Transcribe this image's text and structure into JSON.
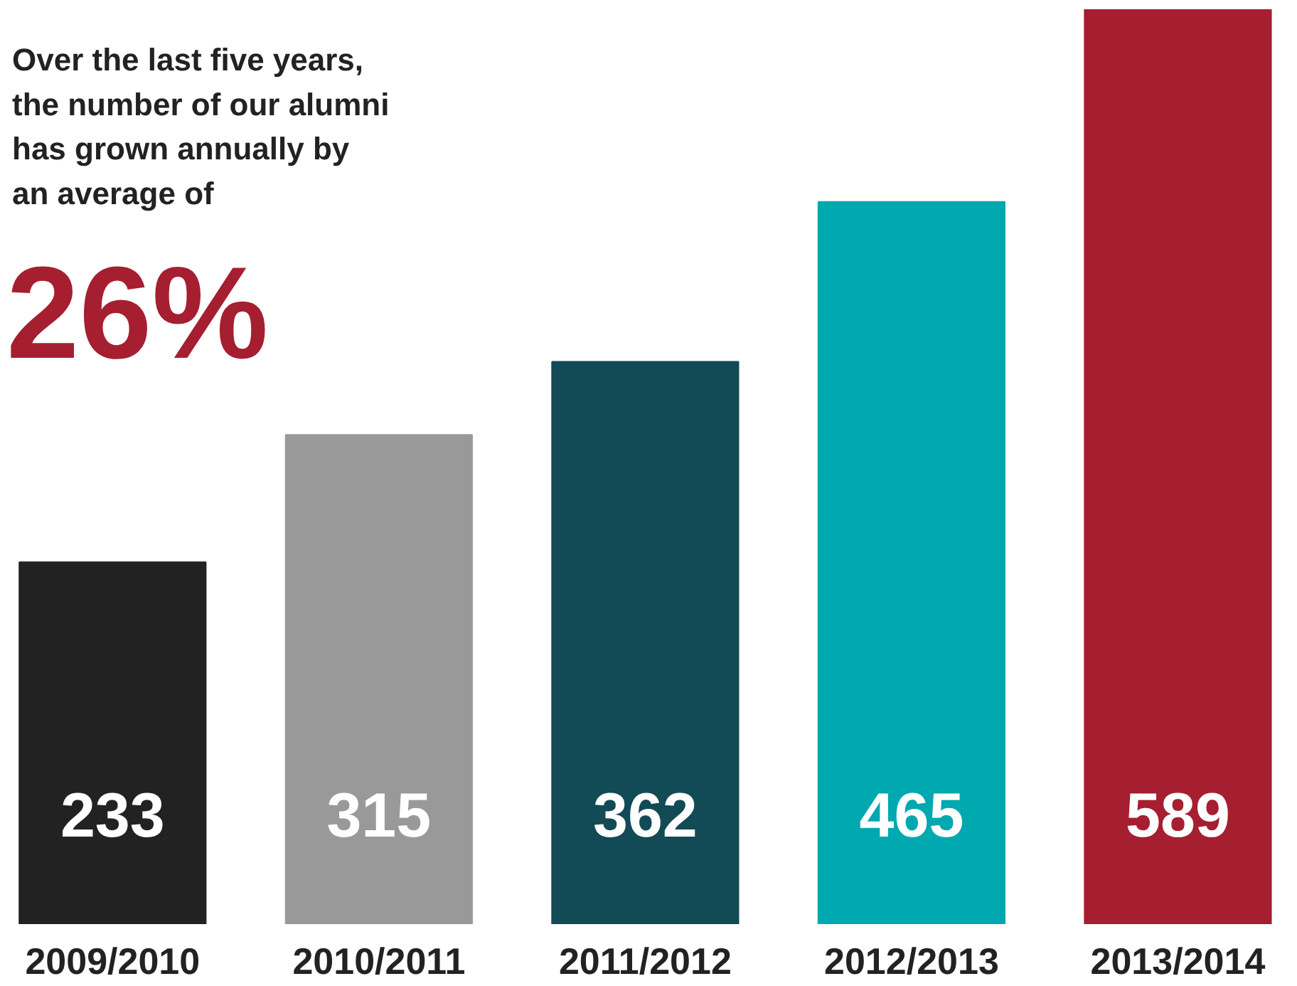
{
  "chart_data": {
    "type": "bar",
    "categories": [
      "2009/2010",
      "2010/2011",
      "2011/2012",
      "2012/2013",
      "2013/2014"
    ],
    "values": [
      233,
      315,
      362,
      465,
      589
    ],
    "colors": [
      "#222222",
      "#999999",
      "#124a55",
      "#00a8b0",
      "#a51f31"
    ],
    "data_labels": true,
    "annotations": [
      "Over the last five years,\nthe number of our alumni\nhas grown annually by\nan average of",
      "26%"
    ]
  }
}
